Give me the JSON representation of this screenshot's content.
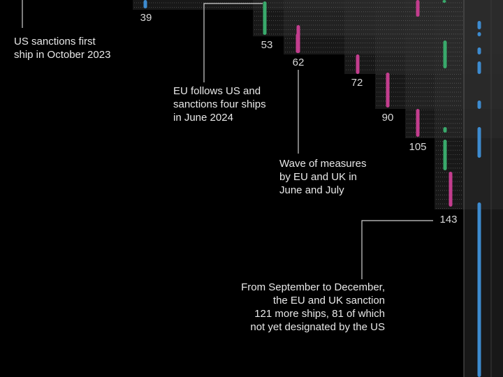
{
  "chart_data": {
    "type": "scatter",
    "description_note": "",
    "colors": {
      "us": "#3d8bcf",
      "eu": "#39a96b",
      "uk": "#c33d8e",
      "step_fill": "#2b2b2b",
      "dots": "#8c8c8c",
      "text": "#e8e8e8",
      "leader": "#d0d0d0"
    },
    "cumulative_ship_counts": [
      39,
      53,
      62,
      72,
      90,
      105,
      143
    ],
    "annotations": [
      {
        "text": "US sanctions first\nship in October 2023"
      },
      {
        "text": "EU follows US and\nsanctions four ships\nin June 2024"
      },
      {
        "text": "Wave of measures\nby EU and UK in\nJune and July"
      },
      {
        "text": "From September to December,\nthe EU and UK sanction\n121 more ships, 81 of which\nnot yet designated by the US"
      }
    ]
  }
}
